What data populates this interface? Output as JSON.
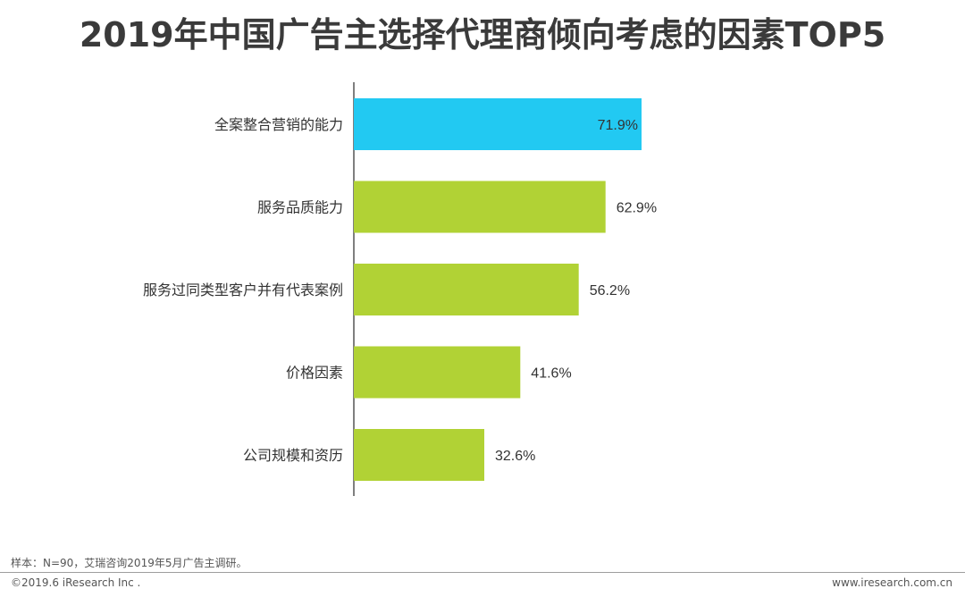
{
  "title": "2019年中国广告主选择代理商倾向考虑的因素TOP5",
  "colors": {
    "highlight_bar": "#22c9f2",
    "bar": "#b1d235",
    "axis": "#555555",
    "text": "#333333"
  },
  "chart_data": {
    "type": "bar",
    "orientation": "horizontal",
    "categories": [
      "全案整合营销的能力",
      "服务品质能力",
      "服务过同类型客户并有代表案例",
      "价格因素",
      "公司规模和资历"
    ],
    "values": [
      71.9,
      62.9,
      56.2,
      41.6,
      32.6
    ],
    "value_labels": [
      "71.9%",
      "62.9%",
      "56.2%",
      "41.6%",
      "32.6%"
    ],
    "unit": "%",
    "highlight_index": 0,
    "title": "2019年中国广告主选择代理商倾向考虑的因素TOP5",
    "xlabel": "",
    "ylabel": "",
    "grid": false,
    "legend": "none"
  },
  "footer": {
    "note": "样本：N=90，艾瑞咨询2019年5月广告主调研。",
    "copyright": "©2019.6 iResearch Inc .",
    "website": "www.iresearch.com.cn"
  }
}
